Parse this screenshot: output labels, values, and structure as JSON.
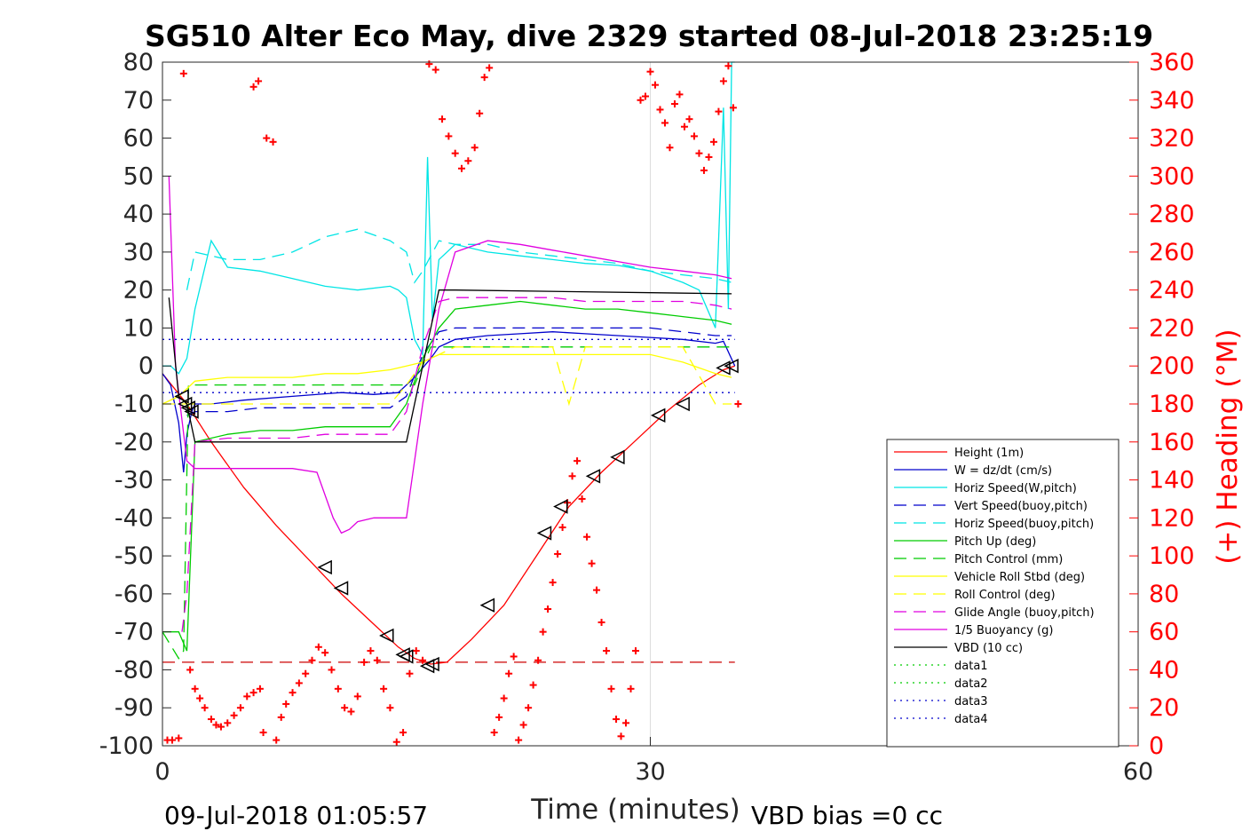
{
  "chart_data": {
    "type": "line",
    "title": "SG510 Alter Eco May, dive 2329 started 08-Jul-2018 23:25:19",
    "xlabel": "Time (minutes)",
    "ylabel": "",
    "ylabel_right": "(+) Heading (°M)",
    "xlim": [
      0,
      60
    ],
    "ylim": [
      -100,
      80
    ],
    "ylim_right": [
      0,
      360
    ],
    "x_ticks": [
      0,
      30,
      60
    ],
    "x_tick_labels": [
      "0",
      "30",
      "60"
    ],
    "y_ticks": [
      80,
      70,
      60,
      50,
      40,
      30,
      20,
      10,
      0,
      -10,
      -20,
      -30,
      -40,
      -50,
      -60,
      -70,
      -80,
      -90,
      -100
    ],
    "y_tick_labels": [
      "80",
      "70",
      "60",
      "50",
      "40",
      "30",
      "20",
      "10",
      "0",
      "-10",
      "-20",
      "-30",
      "-40",
      "-50",
      "-60",
      "-70",
      "-80",
      "-90",
      "-100"
    ],
    "y_right_ticks": [
      360,
      340,
      320,
      300,
      280,
      260,
      240,
      220,
      200,
      180,
      160,
      140,
      120,
      100,
      80,
      60,
      40,
      20,
      0
    ],
    "y_right_tick_labels": [
      "360",
      "340",
      "320",
      "300",
      "280",
      "260",
      "240",
      "220",
      "200",
      "180",
      "160",
      "140",
      "120",
      "100",
      "80",
      "60",
      "40",
      "20",
      "0"
    ],
    "grid": "x-only",
    "legend_position": "bottom-right",
    "footer_left": "09-Jul-2018 01:05:57",
    "footer_right": "VBD bias =0 cc",
    "series": [
      {
        "name": "Height (1m)",
        "color": "#ff0000",
        "style": "solid",
        "x": [
          0,
          1.5,
          3,
          5,
          7,
          9,
          11,
          13,
          14.5,
          15.5,
          16.5,
          17.5,
          19,
          21,
          23,
          25,
          27,
          29,
          31,
          33,
          34.5,
          35.2
        ],
        "y": [
          -2,
          -10,
          -20,
          -32,
          -42,
          -51,
          -60,
          -68,
          -74,
          -77,
          -78.5,
          -78,
          -72,
          -63,
          -50,
          -37,
          -28,
          -20,
          -12,
          -5,
          -1,
          0
        ]
      },
      {
        "name": "W = dz/dt (cm/s)",
        "color": "#0000cc",
        "style": "solid",
        "x": [
          0,
          0.5,
          1,
          1.3,
          1.5,
          1.8,
          2,
          3,
          5,
          8,
          11,
          13,
          14.5,
          15.5,
          16.5,
          17,
          18,
          20,
          22,
          24,
          26,
          28,
          30,
          32,
          34,
          34.5,
          35.2
        ],
        "y": [
          -2,
          -5,
          -15,
          -28,
          -18,
          -12,
          -10,
          -10,
          -9,
          -8,
          -7,
          -7.5,
          -7,
          -3,
          2,
          5,
          7,
          8,
          8.5,
          9,
          8.5,
          8,
          7.5,
          7,
          6,
          6.5,
          0
        ]
      },
      {
        "name": "Horiz Speed(W,pitch)",
        "color": "#00e5e5",
        "style": "solid",
        "x": [
          0,
          0.5,
          1,
          1.5,
          2,
          3,
          4,
          6,
          8,
          10,
          12,
          14,
          14.5,
          15,
          15.5,
          16,
          16.3,
          16.6,
          17,
          18,
          20,
          22,
          24,
          26,
          28,
          30,
          32,
          33,
          34,
          34.5,
          34.8,
          35,
          35.2
        ],
        "y": [
          0,
          0,
          -2,
          2,
          15,
          33,
          26,
          25,
          23,
          21,
          20,
          21,
          20,
          18,
          7,
          3,
          55,
          12,
          28,
          32,
          30,
          29,
          28,
          27,
          26.5,
          25,
          22,
          20,
          10,
          68,
          15,
          85,
          85
        ]
      },
      {
        "name": "Vert Speed(buoy,pitch)",
        "color": "#0000cc",
        "style": "dashed",
        "x": [
          1.5,
          2,
          4,
          6,
          8,
          10,
          12,
          14,
          15,
          16,
          17,
          18,
          20,
          22,
          24,
          26,
          28,
          30,
          32,
          34,
          35
        ],
        "y": [
          -13,
          -12,
          -12,
          -11,
          -11,
          -11,
          -11,
          -11,
          -8,
          3,
          9,
          10,
          10,
          10,
          10,
          10,
          10,
          10,
          9,
          8,
          8
        ]
      },
      {
        "name": "Horiz Speed(buoy,pitch)",
        "color": "#00e5e5",
        "style": "dashed",
        "x": [
          1.5,
          2,
          4,
          6,
          8,
          10,
          12,
          14,
          15,
          15.5,
          16,
          17,
          18,
          20,
          22,
          24,
          26,
          28,
          30,
          32,
          34,
          35
        ],
        "y": [
          20,
          30,
          28,
          28,
          30,
          34,
          36,
          33,
          30,
          22,
          25,
          33,
          32,
          32,
          30,
          29,
          28,
          27,
          25,
          24,
          23,
          22
        ]
      },
      {
        "name": "Pitch Up (deg)",
        "color": "#00cc00",
        "style": "solid",
        "x": [
          0,
          1,
          1.5,
          2,
          4,
          6,
          8,
          10,
          12,
          14,
          15,
          16,
          17,
          18,
          20,
          22,
          24,
          26,
          28,
          30,
          32,
          34,
          35
        ],
        "y": [
          -70,
          -70,
          -75,
          -20,
          -18,
          -17,
          -17,
          -16,
          -16,
          -16,
          -10,
          2,
          10,
          15,
          16,
          17,
          16,
          15,
          15,
          14,
          13,
          12,
          11
        ]
      },
      {
        "name": "Pitch Control (mm)",
        "color": "#00cc00",
        "style": "dashed",
        "x": [
          0,
          1,
          1.3,
          1.6,
          2,
          15,
          15.5,
          16.5,
          35
        ],
        "y": [
          -70,
          -77,
          -75,
          -5,
          -5,
          -5,
          -5,
          5,
          5
        ]
      },
      {
        "name": "Vehicle Roll Stbd (deg)",
        "color": "#ffff00",
        "style": "solid",
        "x": [
          0,
          1,
          2,
          4,
          6,
          8,
          10,
          12,
          14,
          15,
          16,
          17,
          18,
          20,
          22,
          24,
          26,
          28,
          30,
          32,
          34,
          35
        ],
        "y": [
          -10,
          -8,
          -4,
          -3,
          -3,
          -3,
          -2,
          -2,
          -1,
          0,
          1,
          3,
          3,
          3,
          3,
          3,
          3,
          3,
          3,
          1,
          -2,
          -3
        ]
      },
      {
        "name": "Roll Control (deg)",
        "color": "#ffff00",
        "style": "dashed",
        "x": [
          0,
          2,
          4,
          6,
          8,
          10,
          12,
          14,
          15,
          16,
          18,
          20,
          22,
          24,
          25,
          26,
          28,
          30,
          32,
          34,
          35
        ],
        "y": [
          -10,
          -10,
          -10,
          -10,
          -10,
          -10,
          -10,
          -10,
          -5,
          1,
          5,
          5,
          5,
          5,
          -10,
          5,
          5,
          5,
          5,
          -10,
          -10
        ]
      },
      {
        "name": "Glide Angle (buoy,pitch)",
        "color": "#e000e0",
        "style": "dashed",
        "x": [
          1.2,
          1.5,
          2,
          4,
          6,
          8,
          10,
          12,
          14,
          15,
          16,
          17,
          18,
          20,
          22,
          24,
          26,
          28,
          30,
          32,
          34,
          35
        ],
        "y": [
          -70,
          -60,
          -20,
          -19,
          -19,
          -19,
          -18,
          -18,
          -18,
          -12,
          5,
          17,
          18,
          18,
          18,
          18,
          17,
          17,
          17,
          17,
          16,
          15
        ]
      },
      {
        "name": "1/5 Buoyancy (g)",
        "color": "#e000e0",
        "style": "solid",
        "x": [
          0.4,
          0.8,
          1.5,
          2,
          4,
          6,
          8,
          9.5,
          10.5,
          11,
          11.5,
          12,
          13,
          14,
          15,
          16,
          17,
          18,
          20,
          22,
          24,
          26,
          28,
          30,
          32,
          34,
          35
        ],
        "y": [
          50,
          0,
          -25,
          -27,
          -27,
          -27,
          -27,
          -28,
          -40,
          -44,
          -43,
          -41,
          -40,
          -40,
          -40,
          -10,
          15,
          30,
          33,
          32,
          30.5,
          29,
          27.5,
          26,
          25,
          24,
          23
        ]
      },
      {
        "name": "VBD (10 cc)",
        "color": "#000000",
        "style": "solid",
        "x": [
          0.4,
          1,
          1.5,
          2,
          10,
          14,
          15,
          17,
          18,
          35
        ],
        "y": [
          18,
          -8,
          -10,
          -20,
          -20,
          -20,
          -20,
          20,
          20,
          19
        ]
      },
      {
        "name": "data1",
        "color": "#00cc00",
        "style": "dotted",
        "x": [],
        "y": []
      },
      {
        "name": "data2",
        "color": "#00cc00",
        "style": "dotted",
        "x": [],
        "y": []
      },
      {
        "name": "data3",
        "color": "#0000cc",
        "style": "dotted",
        "x": [
          0,
          35.2
        ],
        "y": [
          7,
          7
        ]
      },
      {
        "name": "data4",
        "color": "#0000cc",
        "style": "dotted",
        "x": [
          0,
          35.2
        ],
        "y": [
          -7,
          -7
        ]
      }
    ],
    "reference_line": {
      "color": "#cc0000",
      "style": "dashed",
      "y": -78,
      "x": [
        0,
        35.2
      ]
    },
    "triangle_markers": {
      "color": "#000000",
      "x": [
        1.2,
        1.4,
        1.6,
        1.8,
        10,
        11,
        13.8,
        14.8,
        15,
        16.3,
        16.6,
        20,
        23.5,
        24.5,
        26.5,
        28,
        30.5,
        32,
        34.5,
        35
      ],
      "y": [
        -8,
        -10,
        -11,
        -12,
        -53,
        -58.5,
        -71,
        -76,
        -76.5,
        -79,
        -78.5,
        -63,
        -44,
        -37,
        -29,
        -24,
        -13,
        -10,
        -0.5,
        0
      ]
    },
    "heading_points": {
      "color": "#ff0000",
      "marker": "+",
      "x": [
        0.3,
        0.6,
        1,
        1.3,
        1.7,
        2,
        2.3,
        2.6,
        3,
        3.3,
        3.6,
        4,
        4.4,
        4.8,
        5.2,
        5.6,
        6,
        6.4,
        6.8,
        5.6,
        5.9,
        6.2,
        7,
        7.3,
        7.6,
        8,
        8.4,
        8.8,
        9.2,
        9.6,
        10,
        10.4,
        10.8,
        11.2,
        11.6,
        12,
        12.4,
        12.8,
        13.2,
        13.6,
        14,
        14.4,
        14.8,
        15.2,
        15.6,
        16,
        16.4,
        16.8,
        17.2,
        17.6,
        18,
        18.4,
        18.8,
        19.2,
        19.5,
        19.8,
        20.1,
        20.4,
        20.7,
        21,
        21.3,
        21.6,
        21.9,
        22.2,
        22.5,
        22.8,
        23.1,
        23.4,
        23.7,
        24,
        24.3,
        24.6,
        24.9,
        25.2,
        25.5,
        25.8,
        26.1,
        26.4,
        26.7,
        27,
        27.3,
        27.6,
        27.9,
        28.2,
        28.5,
        28.8,
        29.1,
        29.4,
        29.7,
        30,
        30.3,
        30.6,
        30.9,
        31.2,
        31.5,
        31.8,
        32.1,
        32.4,
        32.7,
        33,
        33.3,
        33.6,
        33.9,
        34.2,
        34.5,
        34.8,
        35.1,
        35.4
      ],
      "y": [
        3,
        3,
        4,
        354,
        40,
        30,
        25,
        20,
        14,
        11,
        10,
        12,
        16,
        20,
        26,
        28,
        30,
        320,
        318,
        347,
        350,
        7,
        3,
        15,
        22,
        28,
        33,
        38,
        45,
        52,
        49,
        40,
        30,
        20,
        18,
        26,
        44,
        50,
        45,
        30,
        20,
        2,
        7,
        38,
        50,
        45,
        359,
        356,
        330,
        321,
        312,
        304,
        308,
        315,
        333,
        352,
        357,
        7,
        15,
        25,
        38,
        47,
        3,
        11,
        20,
        32,
        45,
        60,
        72,
        86,
        101,
        115,
        128,
        142,
        150,
        130,
        110,
        96,
        82,
        65,
        50,
        30,
        14,
        5,
        12,
        30,
        50,
        340,
        342,
        355,
        348,
        335,
        328,
        315,
        338,
        343,
        326,
        330,
        321,
        312,
        303,
        310,
        318,
        334,
        350,
        358,
        336,
        180
      ]
    }
  }
}
